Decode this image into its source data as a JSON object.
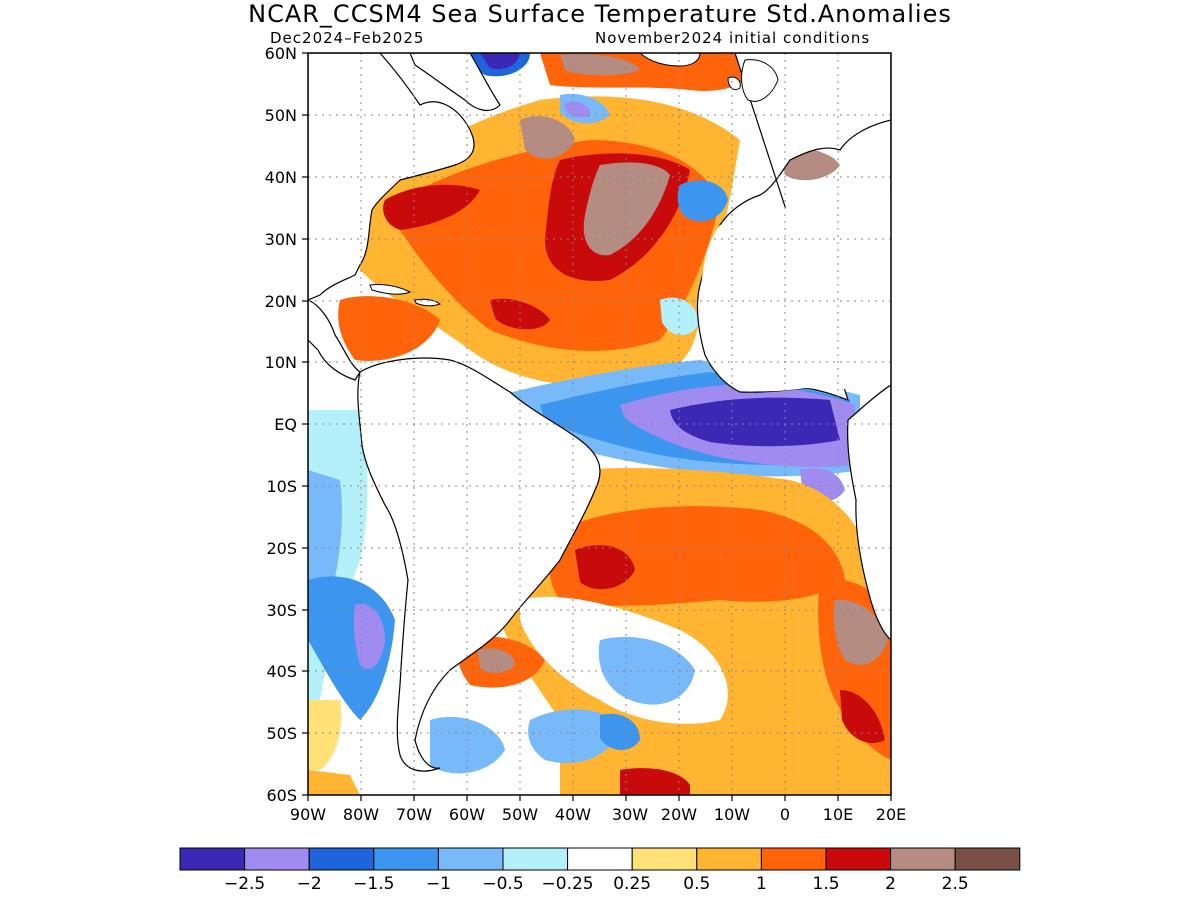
{
  "title": "NCAR_CCSM4 Sea Surface Temperature Std.Anomalies",
  "subtitle_left": "Dec2024–Feb2025",
  "subtitle_right": "November2024 initial conditions",
  "map": {
    "region": "Atlantic Ocean",
    "lat_labels": [
      "60N",
      "50N",
      "40N",
      "30N",
      "20N",
      "10N",
      "EQ",
      "10S",
      "20S",
      "30S",
      "40S",
      "50S",
      "60S"
    ],
    "lon_labels": [
      "90W",
      "80W",
      "70W",
      "60W",
      "50W",
      "40W",
      "30W",
      "20W",
      "10W",
      "0",
      "10E",
      "20E"
    ],
    "lat_range": [
      -60,
      60
    ],
    "lon_range": [
      -90,
      20
    ],
    "grid": "dotted"
  },
  "colorbar": {
    "colors": [
      "#3c28b4",
      "#a08cf0",
      "#1e64dc",
      "#3c96f0",
      "#78b9fa",
      "#b4f0fa",
      "#ffffff",
      "#ffe178",
      "#ffb432",
      "#ff640a",
      "#c80a0a",
      "#b48c82",
      "#785046"
    ],
    "labels": [
      "−2.5",
      "−2",
      "−1.5",
      "−1",
      "−0.5",
      "−0.25",
      "0.25",
      "0.5",
      "1",
      "1.5",
      "2",
      "2.5"
    ]
  }
}
